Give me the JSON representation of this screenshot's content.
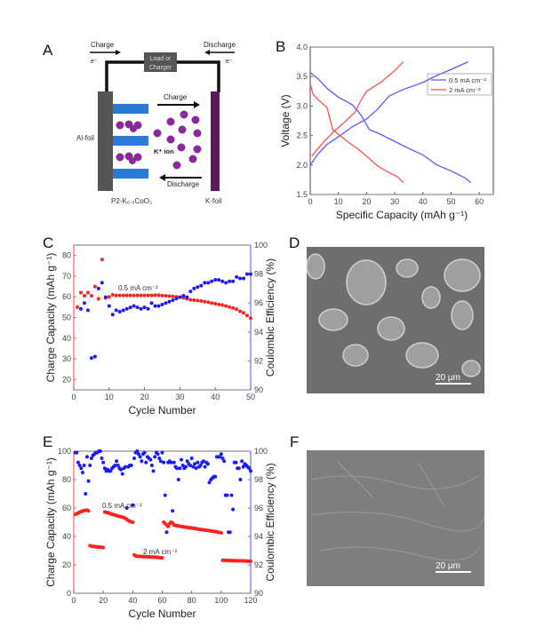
{
  "panels": {
    "A": {
      "label": "A",
      "charge_top": "Charge",
      "discharge_top": "Discharge",
      "electron_left": "e⁻",
      "electron_right": "e⁻",
      "load_line1": "Load or",
      "load_line2": "Charger",
      "charge_arrow": "Charge",
      "discharge_arrow": "Discharge",
      "al_foil": "Al-foil",
      "k_foil": "K-foil",
      "ion": "K⁺ ion",
      "cathode": "P2-K₀.₅CoO₂"
    },
    "D": {
      "label": "D",
      "scale_bar": "20 μm"
    },
    "F": {
      "label": "F",
      "scale_bar": "20 μm"
    }
  },
  "colors": {
    "series_a": "#5a5aff",
    "series_b": "#ff5050",
    "capacity": "#ff2020",
    "efficiency": "#1a1aff",
    "al_foil": "#555555",
    "k_foil": "#5a1a5a",
    "k_ion": "#8a2a9a",
    "cathode": "#2a7ad8"
  },
  "chart_data": [
    {
      "panel": "B",
      "label": "B",
      "type": "line",
      "xlabel": "Specific Capacity (mAh g⁻¹)",
      "ylabel": "Voltage (V)",
      "xlim": [
        0,
        65
      ],
      "ylim": [
        1.5,
        4.0
      ],
      "xticks": [
        "0",
        "10",
        "20",
        "30",
        "40",
        "50",
        "60"
      ],
      "yticks": [
        "1.5",
        "2.0",
        "2.5",
        "3.0",
        "3.5",
        "4.0"
      ],
      "legend_position": "top-right",
      "series": [
        {
          "name": "0.5 mA cm⁻²",
          "color": "#5a5aff",
          "curves": [
            [
              [
                0,
                2.0
              ],
              [
                3,
                2.2
              ],
              [
                6,
                2.35
              ],
              [
                10,
                2.48
              ],
              [
                15,
                2.65
              ],
              [
                20,
                2.78
              ],
              [
                24,
                2.95
              ],
              [
                28,
                3.17
              ],
              [
                33,
                3.28
              ],
              [
                40,
                3.4
              ],
              [
                45,
                3.52
              ],
              [
                50,
                3.62
              ],
              [
                56,
                3.75
              ]
            ],
            [
              [
                0,
                3.57
              ],
              [
                3,
                3.45
              ],
              [
                6,
                3.3
              ],
              [
                10,
                3.15
              ],
              [
                15,
                3.02
              ],
              [
                18,
                2.85
              ],
              [
                21,
                2.6
              ],
              [
                25,
                2.52
              ],
              [
                30,
                2.4
              ],
              [
                35,
                2.28
              ],
              [
                40,
                2.17
              ],
              [
                45,
                2.0
              ],
              [
                50,
                1.9
              ],
              [
                55,
                1.78
              ],
              [
                57,
                1.7
              ]
            ]
          ]
        },
        {
          "name": "2 mA cm⁻²",
          "color": "#ff5050",
          "curves": [
            [
              [
                0.5,
                2.15
              ],
              [
                4,
                2.35
              ],
              [
                8,
                2.55
              ],
              [
                12,
                2.72
              ],
              [
                16,
                2.9
              ],
              [
                18,
                3.1
              ],
              [
                20,
                3.25
              ],
              [
                25,
                3.4
              ],
              [
                30,
                3.6
              ],
              [
                33,
                3.75
              ]
            ],
            [
              [
                0,
                3.38
              ],
              [
                1,
                3.2
              ],
              [
                3,
                3.1
              ],
              [
                6,
                2.97
              ],
              [
                8,
                2.6
              ],
              [
                10,
                2.52
              ],
              [
                14,
                2.37
              ],
              [
                17,
                2.27
              ],
              [
                20,
                2.15
              ],
              [
                24,
                1.98
              ],
              [
                28,
                1.87
              ],
              [
                31,
                1.8
              ],
              [
                33,
                1.7
              ]
            ]
          ]
        }
      ]
    },
    {
      "panel": "C",
      "label": "C",
      "type": "scatter",
      "xlabel": "Cycle Number",
      "ylabel": "Charge Capacity (mAh g⁻¹)",
      "y2label": "Coulombic Efficiency (%)",
      "xlim": [
        0,
        50
      ],
      "ylim": [
        15,
        85
      ],
      "y2lim": [
        90,
        100
      ],
      "xticks": [
        "0",
        "10",
        "20",
        "30",
        "40",
        "50"
      ],
      "yticks": [
        "20",
        "30",
        "40",
        "50",
        "60",
        "70",
        "80"
      ],
      "y2ticks": [
        "90",
        "92",
        "94",
        "96",
        "98",
        "100"
      ],
      "annotations": [
        "0.5 mA cm⁻²"
      ],
      "capacity": {
        "x_start": 1,
        "values": [
          55,
          62,
          60.5,
          62,
          60.5,
          65,
          59,
          78,
          59.5,
          60,
          61,
          60.7,
          60.7,
          60.7,
          60.7,
          60.7,
          60.7,
          60.7,
          60.7,
          60.7,
          60.7,
          60.7,
          60.8,
          60.8,
          60.6,
          60.5,
          60.3,
          60.2,
          60,
          59.9,
          59.5,
          59,
          58.6,
          58.4,
          58.2,
          58,
          57.7,
          57.4,
          57,
          56.7,
          56.3,
          56,
          55.6,
          55.1,
          54.6,
          54,
          53,
          52.3,
          51,
          49.7
        ]
      },
      "efficiency": {
        "x_start": 2,
        "values": [
          95.6,
          96,
          95.5,
          92.2,
          92.3,
          97,
          97.4,
          96.4,
          95.8,
          95.2,
          95.5,
          95.4,
          95.5,
          95.6,
          95.7,
          95.8,
          95.7,
          95.6,
          95.7,
          95.6,
          96,
          95.8,
          95.8,
          95.9,
          96,
          96.1,
          96.2,
          96.3,
          96.4,
          96.5,
          96.4,
          96.8,
          97,
          97.1,
          97.2,
          97.4,
          97.4,
          97.5,
          97.6,
          97.6,
          97.5,
          97.4,
          97.5,
          97.5,
          97.8,
          97.7,
          97.7,
          98,
          98
        ]
      }
    },
    {
      "panel": "E",
      "label": "E",
      "type": "scatter",
      "xlabel": "Cycle Number",
      "ylabel": "Charge Capacity (mAh g⁻¹)",
      "y2label": "Coulombic Efficiency (%)",
      "xlim": [
        0,
        120
      ],
      "ylim": [
        0,
        100
      ],
      "y2lim": [
        90,
        100
      ],
      "xticks": [
        "0",
        "20",
        "40",
        "60",
        "80",
        "100",
        "120"
      ],
      "yticks": [
        "0",
        "20",
        "40",
        "60",
        "80",
        "100"
      ],
      "y2ticks": [
        "90",
        "92",
        "94",
        "96",
        "98",
        "100"
      ],
      "annotations": [
        "0.5 mA cm⁻²",
        "2 mA cm⁻²"
      ],
      "capacity": {
        "x_start": 1,
        "values": [
          55.5,
          56,
          56.5,
          57,
          57.5,
          58,
          58.2,
          58.4,
          58.5,
          58,
          33.5,
          33.2,
          33,
          32.9,
          32.8,
          32.6,
          32.5,
          32.4,
          32.3,
          32.2,
          57.2,
          57,
          56.7,
          56.3,
          56,
          55.6,
          55.3,
          55,
          54.7,
          54.4,
          54.1,
          53.8,
          53.5,
          53.2,
          52.7,
          52,
          51.2,
          50.6,
          50.3,
          50,
          27,
          26.2,
          26,
          26,
          25.9,
          25.9,
          25.8,
          25.8,
          25.7,
          25.7,
          25.6,
          25.6,
          25.5,
          25.5,
          25.4,
          25.3,
          25.2,
          25.1,
          25,
          25,
          50,
          49,
          48,
          47,
          49,
          50,
          49.5,
          48,
          47.8,
          47.6,
          47.4,
          47.2,
          47,
          46.8,
          46.6,
          46.5,
          46.3,
          46.2,
          46,
          45.9,
          45.8,
          45.6,
          45.4,
          45.2,
          45,
          44.9,
          44.8,
          44.6,
          44.5,
          44.3,
          44.2,
          44,
          43.9,
          43.7,
          43.5,
          43.4,
          43.2,
          43,
          42.8,
          42.5,
          23.2,
          23.2,
          23.1,
          23.1,
          23.1,
          23,
          23,
          23,
          23,
          22.9,
          22.9,
          22.9,
          22.8,
          22.8,
          22.8,
          22.7,
          22.7,
          22.6,
          22.6,
          22.5
        ]
      },
      "efficiency": {
        "x_start": 1,
        "values": [
          99.9,
          99.9,
          99.2,
          99,
          98.8,
          98.5,
          99,
          97,
          99.6,
          97.9,
          99,
          99.5,
          99.7,
          99.8,
          99.9,
          99.9,
          100,
          100,
          99.5,
          99.2,
          98.8,
          98.6,
          98.7,
          98.6,
          98.6,
          98.8,
          98.9,
          99,
          99.3,
          99,
          98.8,
          98.7,
          98.4,
          98.8,
          98.9,
          96,
          98.9,
          99,
          99,
          96.2,
          99.5,
          99.9,
          100,
          99.8,
          99.6,
          99.3,
          99.8,
          99.9,
          99.2,
          99.6,
          99.5,
          99.4,
          99,
          98.6,
          99.6,
          99.9,
          99.8,
          99.5,
          99.3,
          99.9,
          99.2,
          96.9,
          94.3,
          99.2,
          99.3,
          99.2,
          95.8,
          99.2,
          98.9,
          98.8,
          98,
          98.8,
          99.4,
          99,
          98.8,
          98.9,
          99.3,
          99.1,
          99,
          99.5,
          98.9,
          99.1,
          98.8,
          99.2,
          98.9,
          99,
          99.2,
          99.3,
          98.9,
          99.2,
          99.1,
          97.8,
          98,
          98.1,
          98.2,
          98.2,
          99.6,
          99.6,
          99.6,
          99.8,
          99.5,
          99.3,
          96.9,
          96.9,
          94.3,
          94.3,
          96.9,
          95.9,
          99.2,
          99.2,
          98.8,
          98.8,
          98,
          99.3,
          98.9,
          99.1,
          99,
          98.9,
          98.8,
          98.6
        ]
      }
    }
  ]
}
